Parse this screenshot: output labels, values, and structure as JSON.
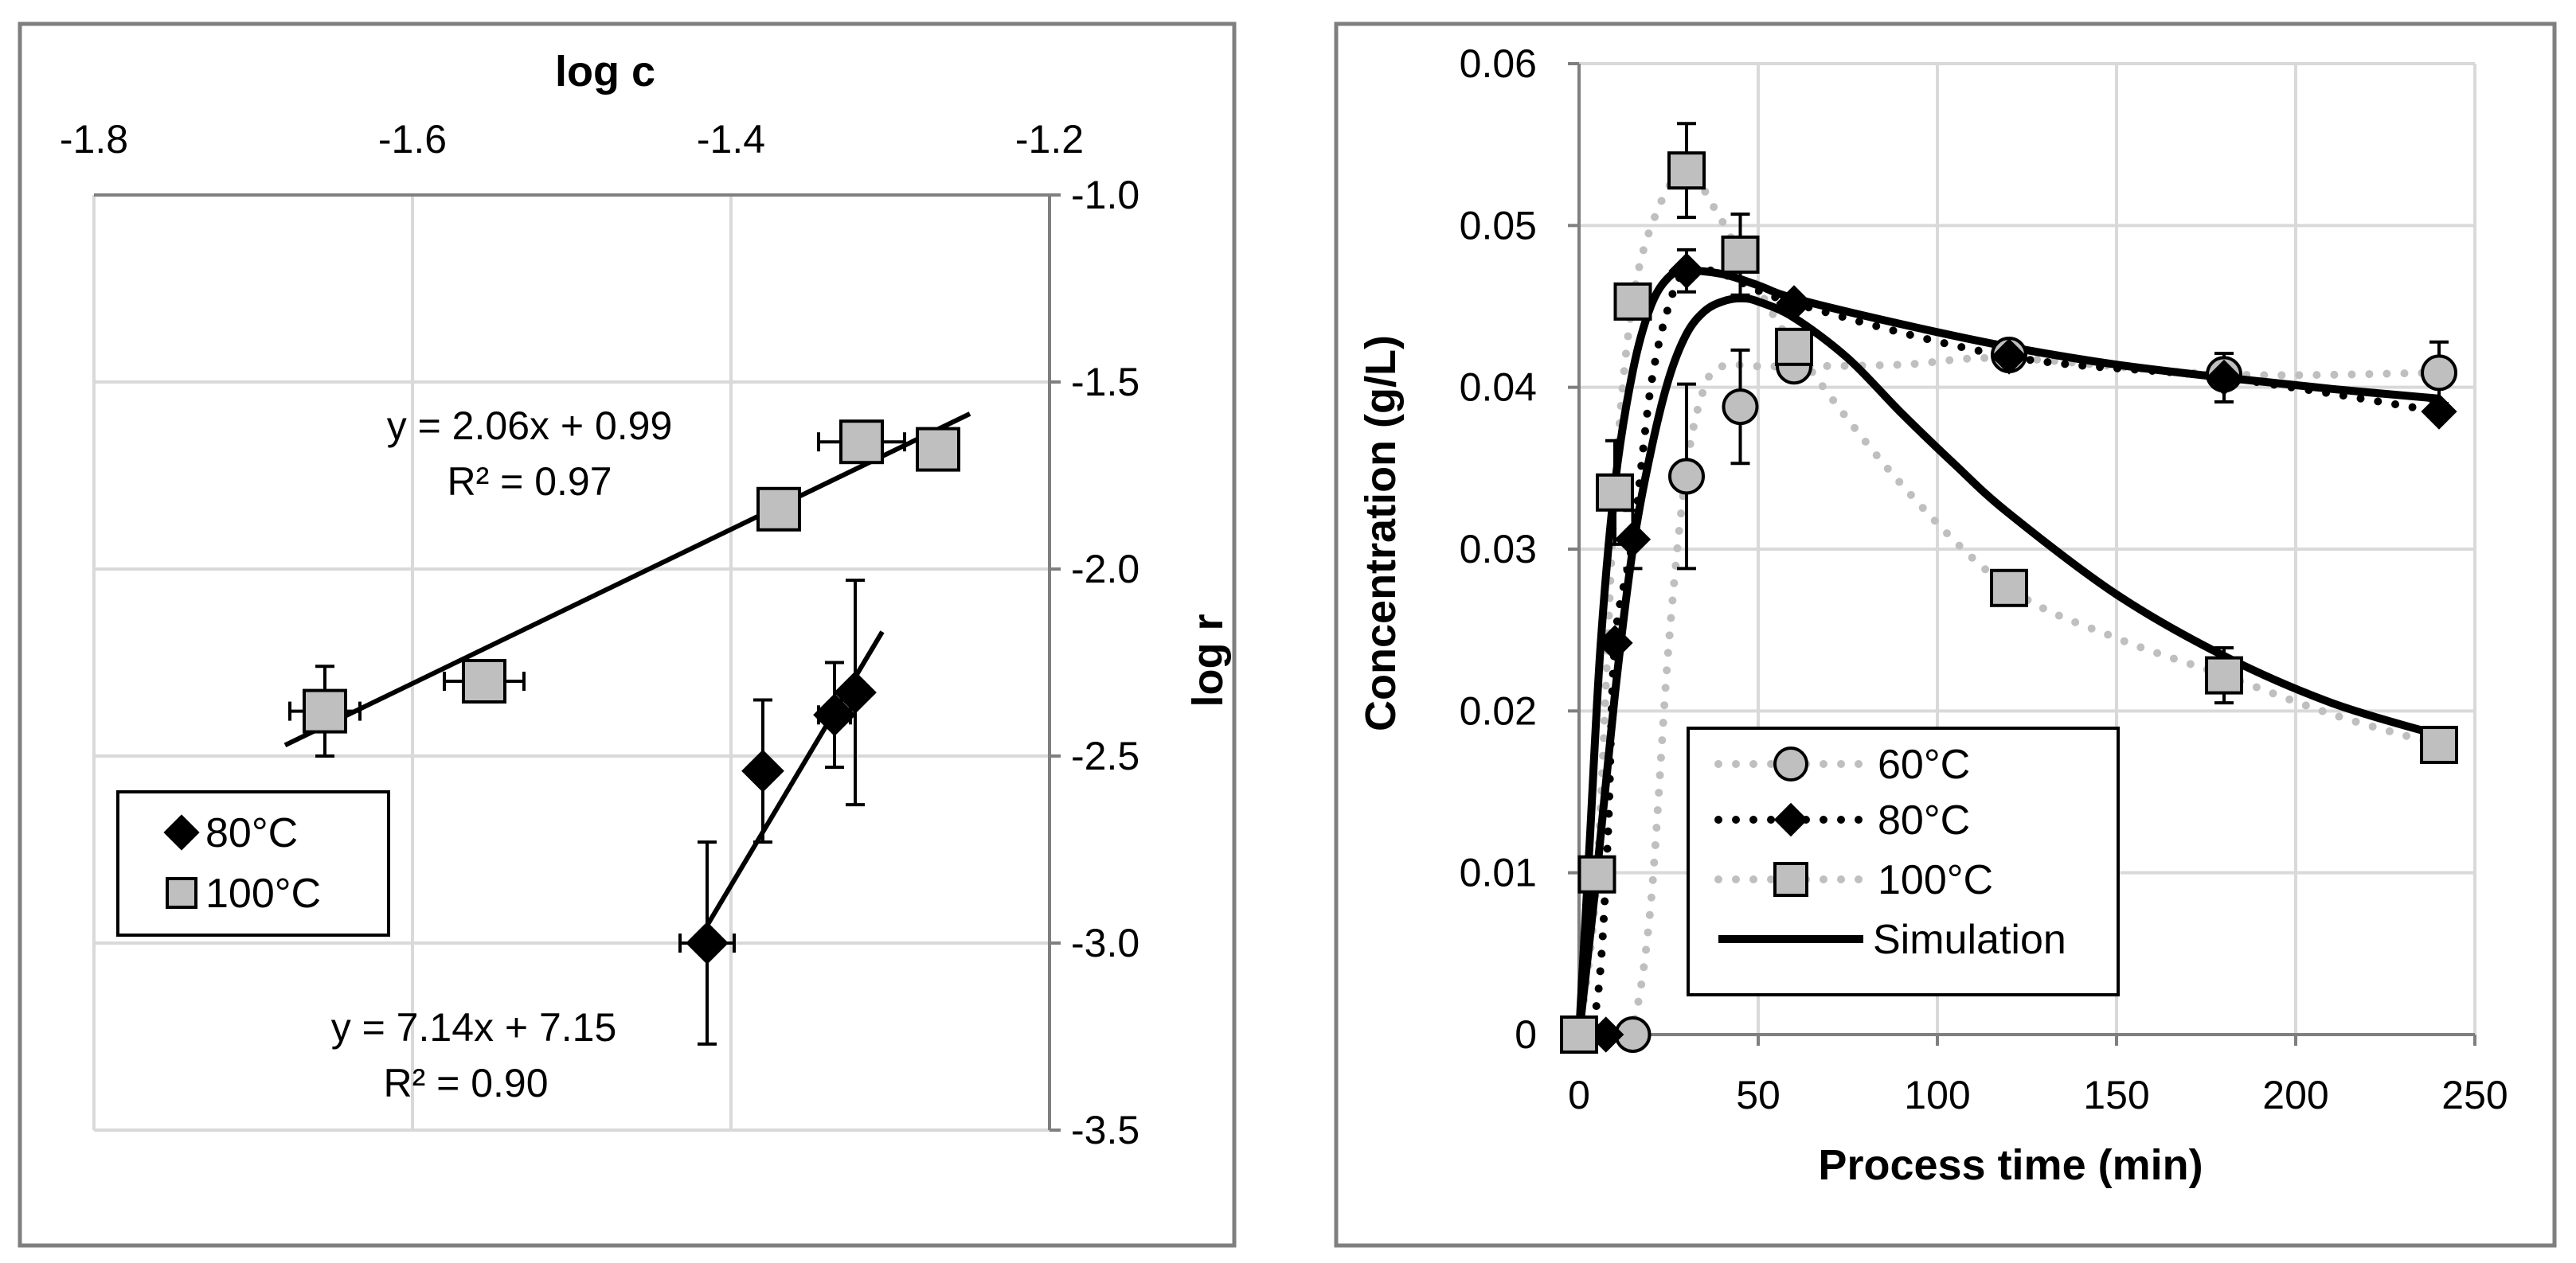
{
  "chart_data": [
    {
      "type": "scatter",
      "panel": "left",
      "xlabel": "log c",
      "ylabel": "log r",
      "xlim": [
        -1.8,
        -1.2
      ],
      "ylim": [
        -3.5,
        -1.0
      ],
      "xticks": [
        "-1.8",
        "-1.6",
        "-1.4",
        "-1.2"
      ],
      "yticks": [
        "-1.0",
        "-1.5",
        "-2.0",
        "-2.5",
        "-3.0",
        "-3.5"
      ],
      "series": [
        {
          "name": "80°C",
          "marker": "diamond",
          "color": "#000000",
          "points": [
            {
              "x": -1.415,
              "y": -3.0,
              "yerr": 0.27,
              "xerr": 0.017
            },
            {
              "x": -1.38,
              "y": -2.54,
              "yerr": 0.19
            },
            {
              "x": -1.335,
              "y": -2.39,
              "yerr": 0.14,
              "xerr": 0.01
            },
            {
              "x": -1.322,
              "y": -2.33,
              "yerr": 0.3
            }
          ],
          "fit": {
            "equation": "y = 7.14x + 7.15",
            "r2": "R² = 0.90",
            "x_range": [
              -1.42,
              -1.305
            ],
            "slope": 7.14,
            "intercept": 7.15
          }
        },
        {
          "name": "100°C",
          "marker": "square",
          "color": "#bfbfbf",
          "points": [
            {
              "x": -1.655,
              "y": -2.38,
              "yerr": 0.12,
              "xerr": 0.022
            },
            {
              "x": -1.555,
              "y": -2.3,
              "xerr": 0.025
            },
            {
              "x": -1.37,
              "y": -1.84
            },
            {
              "x": -1.318,
              "y": -1.66,
              "xerr": 0.027
            },
            {
              "x": -1.27,
              "y": -1.68
            }
          ],
          "fit": {
            "equation": "y = 2.06x + 0.99",
            "r2": "R² = 0.97",
            "x_range": [
              -1.68,
              -1.25
            ],
            "slope": 2.06,
            "intercept": 0.99
          }
        }
      ]
    },
    {
      "type": "line",
      "panel": "right",
      "xlabel": "Process time (min)",
      "ylabel": "Concentration (g/L)",
      "xlim": [
        0,
        250
      ],
      "ylim": [
        0,
        0.06
      ],
      "xticks": [
        "0",
        "50",
        "100",
        "150",
        "200",
        "250"
      ],
      "yticks": [
        "0",
        "0.01",
        "0.02",
        "0.03",
        "0.04",
        "0.05",
        "0.06"
      ],
      "series": [
        {
          "name": "60°C",
          "marker": "circle",
          "line": "dotted-grey",
          "points": [
            {
              "x": 0,
              "y": 0
            },
            {
              "x": 15,
              "y": 0
            },
            {
              "x": 30,
              "y": 0.0345,
              "yerr": 0.0057
            },
            {
              "x": 45,
              "y": 0.0388,
              "yerr": 0.0035
            },
            {
              "x": 60,
              "y": 0.0413
            },
            {
              "x": 120,
              "y": 0.042
            },
            {
              "x": 180,
              "y": 0.0408
            },
            {
              "x": 240,
              "y": 0.0409,
              "yerr": 0.0019
            }
          ],
          "curve": [
            [
              0,
              0
            ],
            [
              10,
              0
            ],
            [
              15,
              0.0005
            ],
            [
              20,
              0.008
            ],
            [
              25,
              0.024
            ],
            [
              30,
              0.035
            ],
            [
              35,
              0.04
            ],
            [
              40,
              0.0413
            ],
            [
              50,
              0.0413
            ],
            [
              60,
              0.0413
            ],
            [
              90,
              0.0414
            ],
            [
              120,
              0.0418
            ],
            [
              180,
              0.0408
            ],
            [
              240,
              0.0409
            ]
          ]
        },
        {
          "name": "80°C",
          "marker": "diamond",
          "line": "dotted-black",
          "points": [
            {
              "x": 0,
              "y": 0
            },
            {
              "x": 7.5,
              "y": 0
            },
            {
              "x": 10,
              "y": 0.0242
            },
            {
              "x": 15,
              "y": 0.0306,
              "yerr": 0.0018
            },
            {
              "x": 30,
              "y": 0.0472,
              "yerr": 0.0013
            },
            {
              "x": 60,
              "y": 0.0452
            },
            {
              "x": 120,
              "y": 0.0419
            },
            {
              "x": 180,
              "y": 0.0406,
              "yerr": 0.0015
            },
            {
              "x": 240,
              "y": 0.0385
            }
          ],
          "curve": [
            [
              0,
              0
            ],
            [
              5,
              0.002
            ],
            [
              8,
              0.012
            ],
            [
              10,
              0.0242
            ],
            [
              15,
              0.0306
            ],
            [
              20,
              0.04
            ],
            [
              25,
              0.045
            ],
            [
              30,
              0.0472
            ],
            [
              40,
              0.047
            ],
            [
              60,
              0.0452
            ],
            [
              120,
              0.0419
            ],
            [
              180,
              0.0406
            ],
            [
              240,
              0.0385
            ]
          ]
        },
        {
          "name": "100°C",
          "marker": "square",
          "line": "dotted-grey",
          "points": [
            {
              "x": 0,
              "y": 0
            },
            {
              "x": 5,
              "y": 0.0099
            },
            {
              "x": 10,
              "y": 0.0335,
              "yerr": 0.0032
            },
            {
              "x": 15,
              "y": 0.0453
            },
            {
              "x": 30,
              "y": 0.0534,
              "yerr": 0.0029
            },
            {
              "x": 45,
              "y": 0.0482,
              "yerr": 0.0025
            },
            {
              "x": 60,
              "y": 0.0425
            },
            {
              "x": 120,
              "y": 0.0276
            },
            {
              "x": 180,
              "y": 0.0222,
              "yerr": 0.0017
            },
            {
              "x": 240,
              "y": 0.0179
            }
          ],
          "curve": [
            [
              0,
              0
            ],
            [
              5,
              0.0099
            ],
            [
              10,
              0.0335
            ],
            [
              15,
              0.0453
            ],
            [
              22,
              0.051
            ],
            [
              30,
              0.0534
            ],
            [
              38,
              0.051
            ],
            [
              45,
              0.0482
            ],
            [
              60,
              0.0425
            ],
            [
              90,
              0.034
            ],
            [
              120,
              0.0276
            ],
            [
              150,
              0.0245
            ],
            [
              180,
              0.0222
            ],
            [
              210,
              0.0198
            ],
            [
              240,
              0.0179
            ]
          ]
        },
        {
          "name": "Simulation",
          "marker": "none",
          "line": "solid-black",
          "curves": [
            [
              [
                0,
                0
              ],
              [
                3,
                0.012
              ],
              [
                6,
                0.024
              ],
              [
                10,
                0.034
              ],
              [
                15,
                0.041
              ],
              [
                20,
                0.045
              ],
              [
                25,
                0.0468
              ],
              [
                30,
                0.0472
              ],
              [
                40,
                0.047
              ],
              [
                50,
                0.0463
              ],
              [
                60,
                0.0455
              ],
              [
                90,
                0.0439
              ],
              [
                120,
                0.0425
              ],
              [
                150,
                0.0414
              ],
              [
                180,
                0.0406
              ],
              [
                210,
                0.0399
              ],
              [
                240,
                0.0393
              ]
            ],
            [
              [
                0,
                0
              ],
              [
                5,
                0.01
              ],
              [
                10,
                0.021
              ],
              [
                15,
                0.03
              ],
              [
                20,
                0.036
              ],
              [
                25,
                0.0405
              ],
              [
                30,
                0.0433
              ],
              [
                35,
                0.0447
              ],
              [
                40,
                0.0453
              ],
              [
                45,
                0.0455
              ],
              [
                50,
                0.0453
              ],
              [
                60,
                0.0443
              ],
              [
                75,
                0.0418
              ],
              [
                90,
                0.0384
              ],
              [
                105,
                0.0352
              ],
              [
                120,
                0.0322
              ],
              [
                150,
                0.0272
              ],
              [
                180,
                0.0234
              ],
              [
                210,
                0.0205
              ],
              [
                240,
                0.0185
              ]
            ]
          ]
        }
      ]
    }
  ]
}
